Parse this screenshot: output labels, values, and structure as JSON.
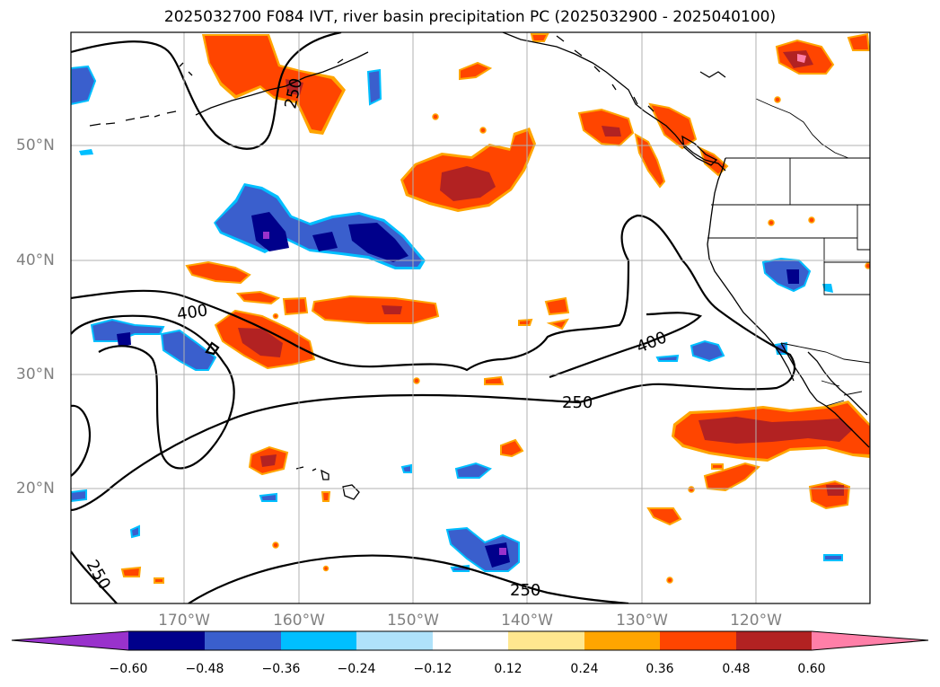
{
  "title": "2025032700 F084 IVT, river basin precipitation PC (2025032900 - 2025040100)",
  "map": {
    "lat_labels": [
      "50°N",
      "40°N",
      "30°N",
      "20°N"
    ],
    "lon_labels": [
      "170°W",
      "160°W",
      "150°W",
      "140°W",
      "130°W",
      "120°W"
    ],
    "contour_labels": [
      "250",
      "400",
      "400",
      "250",
      "250",
      "250"
    ],
    "gridlines": true
  },
  "colorbar": {
    "tick_labels": [
      "−0.60",
      "−0.48",
      "−0.36",
      "−0.24",
      "−0.12",
      "0.12",
      "0.24",
      "0.36",
      "0.48",
      "0.60"
    ],
    "colors": [
      "#9932cc",
      "#00008b",
      "#3a5fcd",
      "#00bfff",
      "#afe2fa",
      "#ffffff",
      "#ffe78f",
      "#ffa500",
      "#ff4500",
      "#b22222",
      "#ff7fa8"
    ]
  }
}
